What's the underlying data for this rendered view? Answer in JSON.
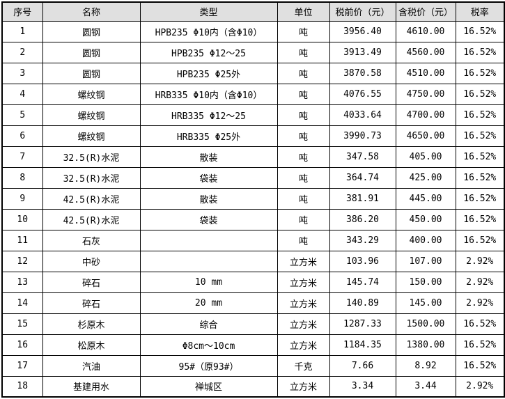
{
  "table": {
    "title": "material-price-table",
    "colors": {
      "header_bg": "#e0e0e0",
      "row_bg": "#ffffff",
      "border": "#000000",
      "text": "#000000"
    },
    "headers": [
      "序号",
      "名称",
      "类型",
      "单位",
      "税前价（元）",
      "含税价（元）",
      "税率"
    ],
    "rows": [
      [
        "1",
        "圆钢",
        "HPB235 Φ10内（含Φ10）",
        "吨",
        "3956.40",
        "4610.00",
        "16.52%"
      ],
      [
        "2",
        "圆钢",
        "HPB235 Φ12～25",
        "吨",
        "3913.49",
        "4560.00",
        "16.52%"
      ],
      [
        "3",
        "圆钢",
        "HPB235 Φ25外",
        "吨",
        "3870.58",
        "4510.00",
        "16.52%"
      ],
      [
        "4",
        "螺纹钢",
        "HRB335 Φ10内（含Φ10）",
        "吨",
        "4076.55",
        "4750.00",
        "16.52%"
      ],
      [
        "5",
        "螺纹钢",
        "HRB335 Φ12～25",
        "吨",
        "4033.64",
        "4700.00",
        "16.52%"
      ],
      [
        "6",
        "螺纹钢",
        "HRB335 Φ25外",
        "吨",
        "3990.73",
        "4650.00",
        "16.52%"
      ],
      [
        "7",
        "32.5(R)水泥",
        "散装",
        "吨",
        "347.58",
        "405.00",
        "16.52%"
      ],
      [
        "8",
        "32.5(R)水泥",
        "袋装",
        "吨",
        "364.74",
        "425.00",
        "16.52%"
      ],
      [
        "9",
        "42.5(R)水泥",
        "散装",
        "吨",
        "381.91",
        "445.00",
        "16.52%"
      ],
      [
        "10",
        "42.5(R)水泥",
        "袋装",
        "吨",
        "386.20",
        "450.00",
        "16.52%"
      ],
      [
        "11",
        "石灰",
        "",
        "吨",
        "343.29",
        "400.00",
        "16.52%"
      ],
      [
        "12",
        "中砂",
        "",
        "立方米",
        "103.96",
        "107.00",
        "2.92%"
      ],
      [
        "13",
        "碎石",
        "10 mm",
        "立方米",
        "145.74",
        "150.00",
        "2.92%"
      ],
      [
        "14",
        "碎石",
        "20 mm",
        "立方米",
        "140.89",
        "145.00",
        "2.92%"
      ],
      [
        "15",
        "杉原木",
        "综合",
        "立方米",
        "1287.33",
        "1500.00",
        "16.52%"
      ],
      [
        "16",
        "松原木",
        "Φ8cm～10cm",
        "立方米",
        "1184.35",
        "1380.00",
        "16.52%"
      ],
      [
        "17",
        "汽油",
        "95#（原93#）",
        "千克",
        "7.66",
        "8.92",
        "16.52%"
      ],
      [
        "18",
        "基建用水",
        "禅城区",
        "立方米",
        "3.34",
        "3.44",
        "2.92%"
      ]
    ]
  }
}
